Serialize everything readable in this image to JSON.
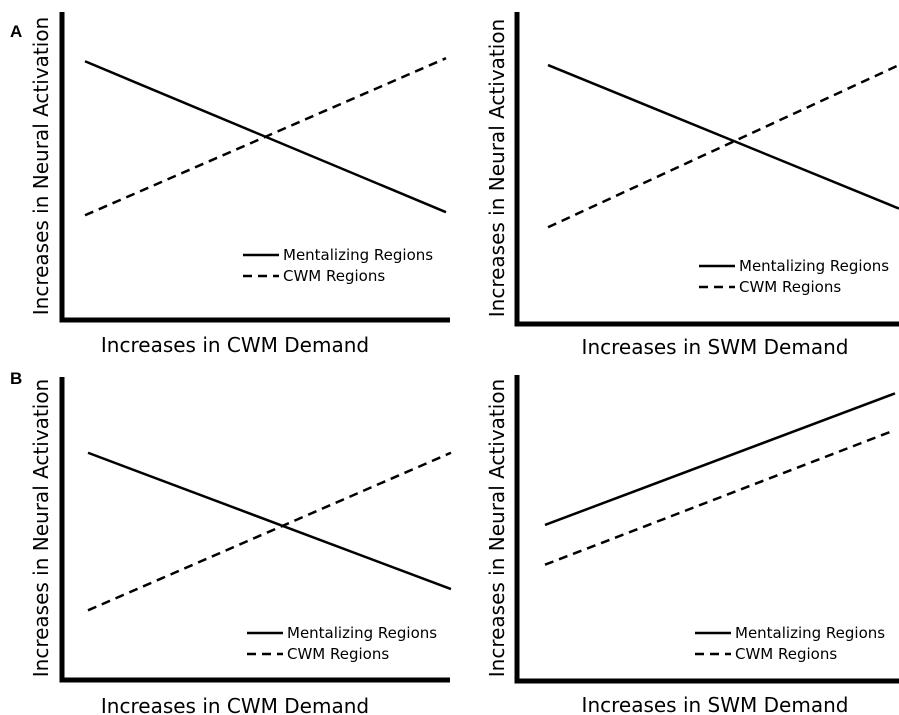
{
  "panel_labels": [
    "A",
    "B"
  ],
  "chart_data": [
    {
      "type": "line",
      "panel": "A",
      "xlabel": "Increases in CWM Demand",
      "ylabel": "Increases in Neural Activation",
      "x": [
        0,
        1
      ],
      "series": [
        {
          "name": "Mentalizing Regions",
          "style": "solid",
          "values": [
            0.84,
            0.35
          ]
        },
        {
          "name": "CWM Regions",
          "style": "dashed",
          "values": [
            0.34,
            0.85
          ]
        }
      ],
      "xlim": [
        0,
        1
      ],
      "ylim": [
        0,
        1
      ],
      "grid": false,
      "legend": "bottom-right"
    },
    {
      "type": "line",
      "panel": "A",
      "xlabel": "Increases in SWM Demand",
      "ylabel": "Increases in Neural Activation",
      "x": [
        0,
        1
      ],
      "series": [
        {
          "name": "Mentalizing Regions",
          "style": "solid",
          "values": [
            0.83,
            0.37
          ]
        },
        {
          "name": "CWM Regions",
          "style": "dashed",
          "values": [
            0.31,
            0.83
          ]
        }
      ],
      "xlim": [
        0,
        1
      ],
      "ylim": [
        0,
        1
      ],
      "grid": false,
      "legend": "bottom-right"
    },
    {
      "type": "line",
      "panel": "B",
      "xlabel": "Increases in CWM Demand",
      "ylabel": "Increases in Neural Activation",
      "x": [
        0,
        1
      ],
      "series": [
        {
          "name": "Mentalizing Regions",
          "style": "solid",
          "values": [
            0.75,
            0.3
          ]
        },
        {
          "name": "CWM Regions",
          "style": "dashed",
          "values": [
            0.23,
            0.75
          ]
        }
      ],
      "xlim": [
        0,
        1
      ],
      "ylim": [
        0,
        1
      ],
      "grid": false,
      "legend": "bottom-right"
    },
    {
      "type": "line",
      "panel": "B",
      "xlabel": "Increases in SWM Demand",
      "ylabel": "Increases in Neural Activation",
      "x": [
        0,
        1
      ],
      "series": [
        {
          "name": "Mentalizing Regions",
          "style": "solid",
          "values": [
            0.51,
            0.94
          ]
        },
        {
          "name": "CWM Regions",
          "style": "dashed",
          "values": [
            0.38,
            0.82
          ]
        }
      ],
      "xlim": [
        0,
        1
      ],
      "ylim": [
        0,
        1
      ],
      "grid": false,
      "legend": "bottom-right"
    }
  ]
}
